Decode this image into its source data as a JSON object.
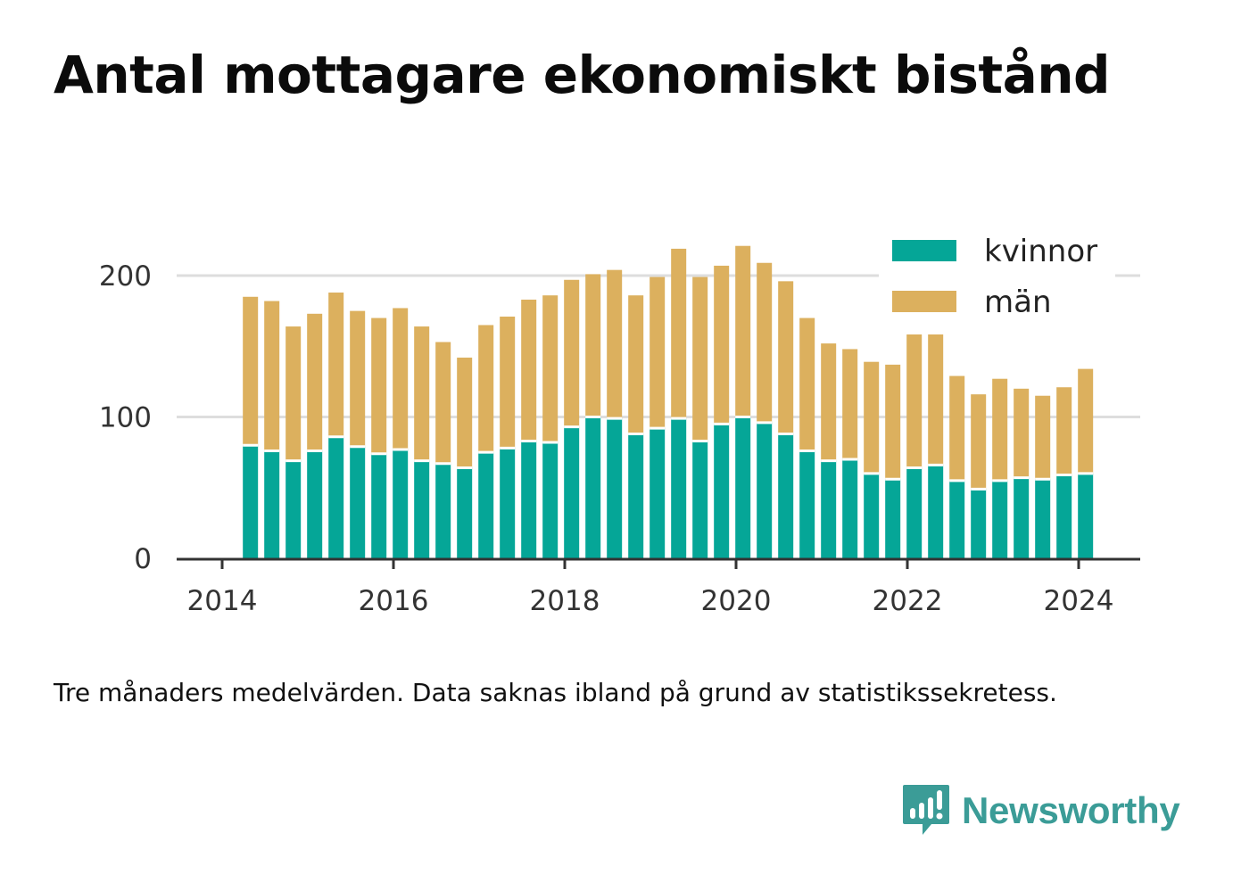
{
  "title": "Antal mottagare ekonomiskt bistånd",
  "caption": "Tre månaders medelvärden. Data saknas ibland på grund av statistikssekretess.",
  "brand": {
    "name": "Newsworthy"
  },
  "colors": {
    "kvinnor": "#05a697",
    "man": "#dcb05e",
    "grid": "#dddddd",
    "axis": "#333333",
    "brand": "#3b9c97"
  },
  "chart_data": {
    "type": "bar",
    "stacked": true,
    "title": "Antal mottagare ekonomiskt bistånd",
    "xlabel": "",
    "ylabel": "",
    "xlim": [
      2013.7,
      2024.7
    ],
    "ylim": [
      0,
      220
    ],
    "x_ticks": [
      2014,
      2016,
      2018,
      2020,
      2022,
      2024
    ],
    "y_ticks": [
      0,
      100,
      200
    ],
    "grid": true,
    "legend_position": "top-right",
    "x": [
      2014.33,
      2014.58,
      2014.83,
      2015.08,
      2015.33,
      2015.58,
      2015.83,
      2016.08,
      2016.33,
      2016.58,
      2016.83,
      2017.08,
      2017.33,
      2017.58,
      2017.83,
      2018.08,
      2018.33,
      2018.58,
      2018.83,
      2019.08,
      2019.33,
      2019.58,
      2019.83,
      2020.08,
      2020.33,
      2020.58,
      2020.83,
      2021.08,
      2021.33,
      2021.58,
      2021.83,
      2022.08,
      2022.33,
      2022.58,
      2022.83,
      2023.08,
      2023.33,
      2023.58,
      2023.83,
      2024.08
    ],
    "series": [
      {
        "name": "kvinnor",
        "values": [
          80,
          76,
          69,
          76,
          86,
          79,
          74,
          77,
          69,
          67,
          64,
          75,
          78,
          83,
          82,
          93,
          100,
          99,
          88,
          92,
          99,
          83,
          95,
          100,
          96,
          88,
          76,
          69,
          70,
          60,
          56,
          64,
          66,
          55,
          49,
          55,
          57,
          56,
          59,
          60
        ]
      },
      {
        "name": "män",
        "values": [
          105,
          106,
          95,
          97,
          102,
          96,
          96,
          100,
          95,
          86,
          78,
          90,
          93,
          100,
          104,
          104,
          101,
          105,
          98,
          107,
          120,
          116,
          112,
          121,
          113,
          108,
          94,
          83,
          78,
          79,
          81,
          95,
          93,
          74,
          67,
          72,
          63,
          59,
          62,
          74
        ]
      }
    ]
  }
}
